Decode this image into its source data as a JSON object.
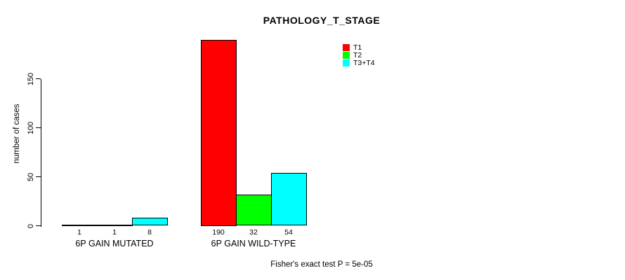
{
  "title": "PATHOLOGY_T_STAGE",
  "footer": "Fisher's exact test P = 5e-05",
  "colors": {
    "background": "#FFFFFF",
    "axis": "#000000",
    "text": "#000000",
    "t1": "#FF0000",
    "t2": "#00FF00",
    "t3_t4": "#00FFFF"
  },
  "chart_data": {
    "type": "bar",
    "title": "PATHOLOGY_T_STAGE",
    "xlabel": "",
    "ylabel": "number of cases",
    "categories": [
      "6P GAIN MUTATED",
      "6P GAIN WILD-TYPE"
    ],
    "series": [
      {
        "name": "T1",
        "color": "#FF0000",
        "values": [
          1,
          190
        ]
      },
      {
        "name": "T2",
        "color": "#00FF00",
        "values": [
          1,
          32
        ]
      },
      {
        "name": "T3+T4",
        "color": "#00FFFF",
        "values": [
          8,
          54
        ]
      }
    ],
    "bar_value_labels": [
      [
        "1",
        "1",
        "8"
      ],
      [
        "190",
        "32",
        "54"
      ]
    ],
    "yticks": [
      0,
      50,
      100,
      150
    ],
    "ylim": [
      0,
      190
    ],
    "grid": false,
    "legend_position": "top-right",
    "legend_entries": [
      "T1",
      "T2",
      "T3+T4"
    ],
    "annotation": "Fisher's exact test P = 5e-05"
  }
}
